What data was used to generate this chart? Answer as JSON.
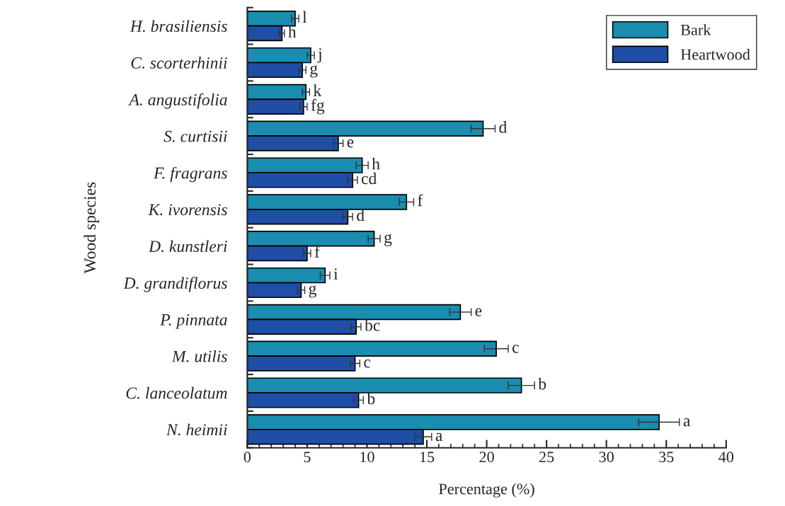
{
  "chart_data": {
    "type": "bar",
    "orientation": "horizontal",
    "xlabel": "Percentage (%)",
    "ylabel": "Wood species",
    "categories": [
      "H. brasiliensis",
      "C. scorterhinii",
      "A. angustifolia",
      "S. curtisii",
      "F. fragrans",
      "K. ivorensis",
      "D. kunstleri",
      "D. grandiflorus",
      "P. pinnata",
      "M. utilis",
      "C. lanceolatum",
      "N. heimii"
    ],
    "series": [
      {
        "name": "Bark",
        "color": "#1a8db0",
        "values": [
          4.0,
          5.3,
          4.9,
          19.7,
          9.6,
          13.3,
          10.6,
          6.5,
          17.8,
          20.8,
          22.9,
          34.4
        ],
        "errors": [
          0.3,
          0.3,
          0.3,
          1.0,
          0.5,
          0.6,
          0.5,
          0.4,
          0.9,
          1.0,
          1.1,
          1.7
        ],
        "value_labels": [
          "l",
          "j",
          "k",
          "d",
          "h",
          "f",
          "g",
          "i",
          "e",
          "c",
          "b",
          "a"
        ]
      },
      {
        "name": "Heartwood",
        "color": "#1f4ea6",
        "values": [
          2.9,
          4.6,
          4.7,
          7.6,
          8.8,
          8.4,
          5.0,
          4.5,
          9.1,
          9.0,
          9.3,
          14.7
        ],
        "errors": [
          0.2,
          0.3,
          0.3,
          0.4,
          0.4,
          0.4,
          0.3,
          0.3,
          0.4,
          0.4,
          0.4,
          0.7
        ],
        "value_labels": [
          "h",
          "g",
          "fg",
          "e",
          "cd",
          "d",
          "f",
          "g",
          "bc",
          "c",
          "b",
          "a"
        ]
      }
    ],
    "xlim": [
      0,
      40
    ],
    "xticks": [
      0,
      5,
      10,
      15,
      20,
      25,
      30,
      35,
      40
    ],
    "legend": "top right"
  }
}
